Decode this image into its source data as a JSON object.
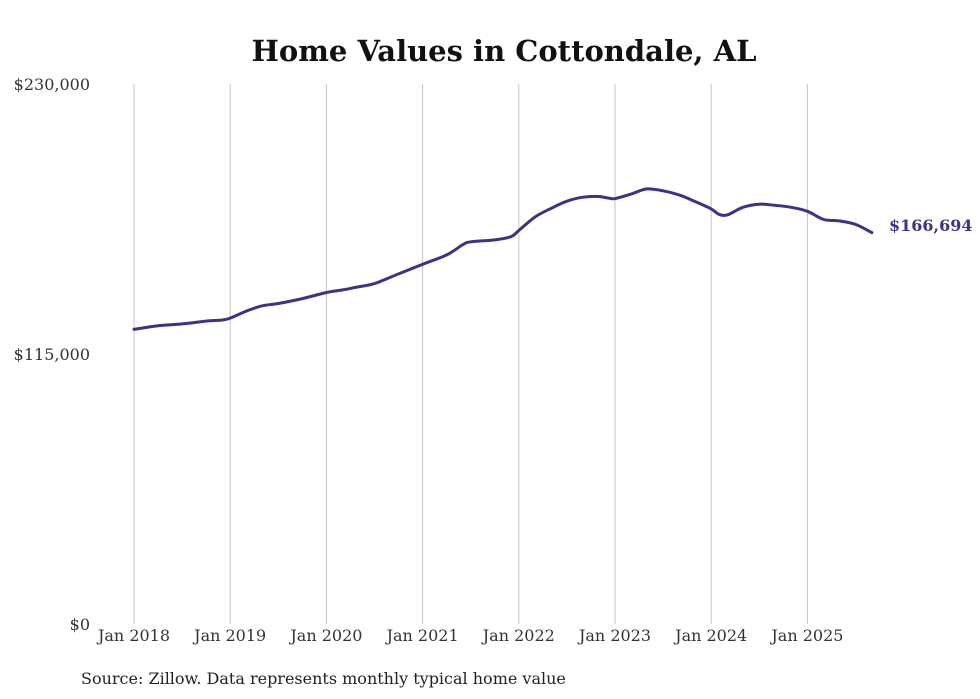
{
  "chart_data": {
    "type": "line",
    "title": "Home Values in Cottondale, AL",
    "xlabel": "",
    "ylabel": "",
    "ylim": [
      0,
      230000
    ],
    "y_ticks": [
      {
        "value": 0,
        "label": "$0"
      },
      {
        "value": 115000,
        "label": "$115,000"
      },
      {
        "value": 230000,
        "label": "$230,000"
      }
    ],
    "x_ticks": [
      {
        "value": 2018.0,
        "label": "Jan 2018"
      },
      {
        "value": 2019.0,
        "label": "Jan 2019"
      },
      {
        "value": 2020.0,
        "label": "Jan 2020"
      },
      {
        "value": 2021.0,
        "label": "Jan 2021"
      },
      {
        "value": 2022.0,
        "label": "Jan 2022"
      },
      {
        "value": 2023.0,
        "label": "Jan 2023"
      },
      {
        "value": 2024.0,
        "label": "Jan 2024"
      },
      {
        "value": 2025.0,
        "label": "Jan 2025"
      }
    ],
    "grid": "vertical",
    "line_color": "#3b3386",
    "end_label": "$166,694",
    "source": "Source: Zillow. Data represents monthly typical home value",
    "series": [
      {
        "name": "Typical home value",
        "x": [
          2018.0,
          2018.25,
          2018.5,
          2018.75,
          2018.92,
          2019.0,
          2019.17,
          2019.33,
          2019.5,
          2019.75,
          2020.0,
          2020.17,
          2020.33,
          2020.5,
          2020.75,
          2021.0,
          2021.25,
          2021.42,
          2021.5,
          2021.75,
          2021.92,
          2022.0,
          2022.17,
          2022.33,
          2022.5,
          2022.67,
          2022.83,
          2022.92,
          2023.0,
          2023.17,
          2023.33,
          2023.5,
          2023.67,
          2023.83,
          2024.0,
          2024.08,
          2024.17,
          2024.33,
          2024.5,
          2024.67,
          2024.83,
          2025.0,
          2025.17,
          2025.33,
          2025.5,
          2025.67
        ],
        "values": [
          125500,
          127000,
          127800,
          129000,
          129500,
          130300,
          133300,
          135500,
          136500,
          138600,
          141200,
          142300,
          143600,
          145000,
          149100,
          153200,
          157200,
          161600,
          162800,
          163600,
          165000,
          167600,
          173400,
          176900,
          180100,
          181800,
          182100,
          181500,
          181200,
          183200,
          185300,
          184500,
          182700,
          180000,
          176800,
          174500,
          174300,
          177500,
          178800,
          178300,
          177500,
          175800,
          172300,
          171700,
          170200,
          166694
        ]
      }
    ]
  }
}
